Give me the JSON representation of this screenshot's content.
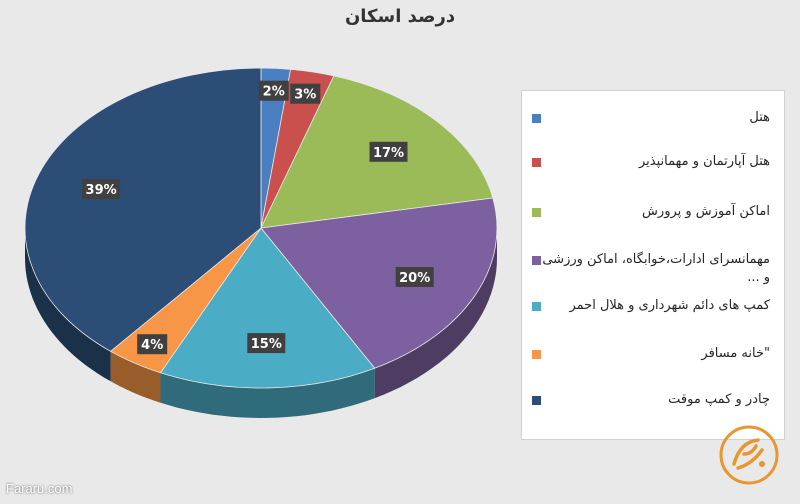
{
  "chart_data": {
    "type": "pie",
    "title": "درصد اسکان",
    "slices": [
      {
        "label": "هتل",
        "value": 2,
        "value_label": "2%",
        "color": "#4a7fc1"
      },
      {
        "label": "هتل آپارتمان و مهمانپذیر",
        "value": 3,
        "value_label": "3%",
        "color": "#c9504d"
      },
      {
        "label": "اماکن آموزش و پرورش",
        "value": 17,
        "value_label": "17%",
        "color": "#9bbb59"
      },
      {
        "label": "مهمانسرای ادارات،خوابگاه، اماکن ورزشی و ...",
        "value": 20,
        "value_label": "20%",
        "color": "#7d60a0"
      },
      {
        "label": "کمپ های دائم شهرداری و هلال احمر",
        "value": 15,
        "value_label": "15%",
        "color": "#4bacc6"
      },
      {
        "label": "\"خانه مسافر",
        "value": 4,
        "value_label": "4%",
        "color": "#f79646"
      },
      {
        "label": "چادر و کمپ موقت",
        "value": 39,
        "value_label": "39%",
        "color": "#2c4d75"
      }
    ],
    "legend_position": "right"
  },
  "watermark": "Fararu.com",
  "logo_name": "fararu-logo"
}
